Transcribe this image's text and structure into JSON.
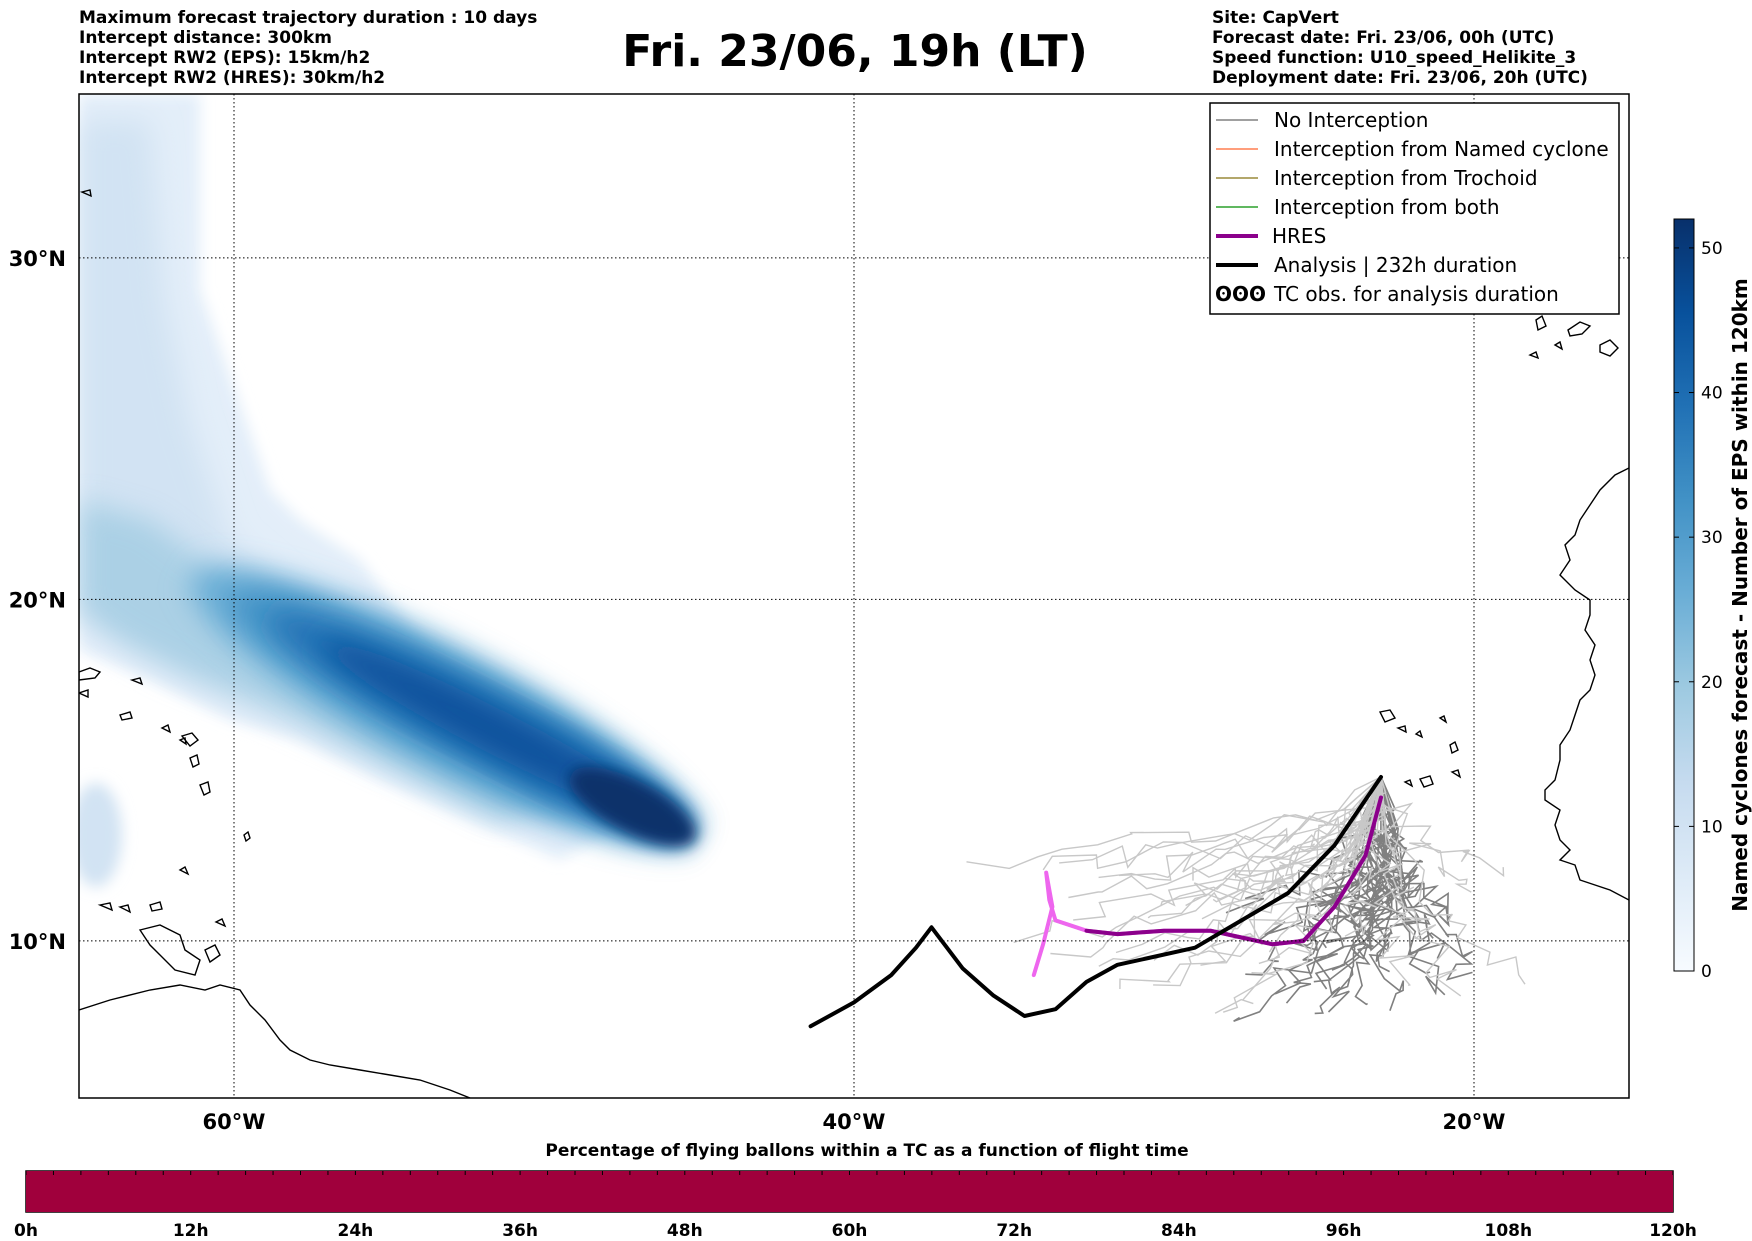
{
  "header": {
    "title": "Fri. 23/06, 19h (LT)",
    "left_info": [
      "Maximum forecast trajectory duration : 10 days",
      "Intercept distance: 300km",
      "Intercept RW2 (EPS):  15km/h2",
      "Intercept RW2 (HRES): 30km/h2"
    ],
    "right_info": [
      "Site: CapVert",
      "Forecast date: Fri. 23/06, 00h (UTC)",
      "Speed function: U10_speed_Helikite_3",
      "Deployment date: Fri. 23/06, 20h (UTC)"
    ]
  },
  "map": {
    "lon_range": [
      -65,
      -15
    ],
    "lat_range": [
      5.4,
      34.8
    ],
    "lon_ticks": [
      {
        "value": -60,
        "label": "60°W"
      },
      {
        "value": -40,
        "label": "40°W"
      },
      {
        "value": -20,
        "label": "20°W"
      }
    ],
    "lat_ticks": [
      {
        "value": 30,
        "label": "30°N"
      },
      {
        "value": 20,
        "label": "20°N"
      },
      {
        "value": 10,
        "label": "10°N"
      }
    ],
    "grid": "dotted",
    "colors": {
      "no_interception": "#808080",
      "named_cyclone": "#ff7f50",
      "trochoid": "#9a8a3a",
      "both": "#2ca02c",
      "hres": "#8b008b",
      "hres_light": "#ee66ee",
      "analysis": "#000000"
    }
  },
  "legend": {
    "placement": "top-right",
    "items": [
      {
        "label": "No Interception",
        "color": "#808080",
        "style": "thin-line"
      },
      {
        "label": "Interception from Named cyclone",
        "color": "#ff7f50",
        "style": "thin-line"
      },
      {
        "label": "Interception from Trochoid",
        "color": "#9a8a3a",
        "style": "thin-line"
      },
      {
        "label": "Interception from both",
        "color": "#2ca02c",
        "style": "thin-line"
      },
      {
        "label": "HRES",
        "color": "#8b008b",
        "style": "thick-line"
      },
      {
        "label": "Analysis | 232h duration",
        "color": "#000000",
        "style": "thick-line"
      },
      {
        "label": "TC obs. for analysis duration",
        "color": "#000000",
        "style": "cyclone-symbols"
      }
    ]
  },
  "colorbar": {
    "title": "Named cyclones forecast - Number of EPS within 120km",
    "range": [
      0,
      52
    ],
    "ticks": [
      0,
      10,
      20,
      30,
      40,
      50
    ],
    "colormap": "Blues"
  },
  "bottom_bar": {
    "title": "Percentage of flying ballons within a TC as a function of flight time",
    "color": "#a0003c",
    "ticks": [
      "0h",
      "12h",
      "24h",
      "36h",
      "48h",
      "60h",
      "72h",
      "84h",
      "96h",
      "108h",
      "120h"
    ]
  },
  "chart_data": {
    "type": "map",
    "title": "Fri. 23/06, 19h (LT)",
    "xlabel": "",
    "ylabel": "",
    "xlim": [
      -65,
      -15
    ],
    "ylim": [
      5.4,
      34.8
    ],
    "cyclone_density": {
      "axis_start": [
        -60,
        20
      ],
      "axis_end": [
        -46.5,
        13.7
      ],
      "peak_value": 52,
      "peak_location": [
        -46.5,
        13.7
      ],
      "upstream_plume_to": [
        -65,
        34.8
      ]
    },
    "analysis_track": {
      "name": "Analysis | 232h duration",
      "duration_h": 232,
      "points": [
        [
          -23.0,
          14.8
        ],
        [
          -24.5,
          12.8
        ],
        [
          -26.0,
          11.4
        ],
        [
          -27.5,
          10.6
        ],
        [
          -29.0,
          9.8
        ],
        [
          -30.5,
          9.5
        ],
        [
          -31.5,
          9.3
        ],
        [
          -32.5,
          8.8
        ],
        [
          -33.5,
          8.0
        ],
        [
          -34.5,
          7.8
        ],
        [
          -35.5,
          8.4
        ],
        [
          -36.5,
          9.2
        ],
        [
          -37.5,
          10.4
        ],
        [
          -38.0,
          9.8
        ],
        [
          -38.8,
          9.0
        ],
        [
          -40.0,
          8.2
        ],
        [
          -41.4,
          7.5
        ]
      ]
    },
    "hres_track": {
      "name": "HRES",
      "points": [
        [
          -23.0,
          14.2
        ],
        [
          -23.5,
          12.5
        ],
        [
          -24.5,
          11.0
        ],
        [
          -25.5,
          10.0
        ],
        [
          -26.5,
          9.9
        ],
        [
          -27.5,
          10.1
        ],
        [
          -28.5,
          10.3
        ],
        [
          -30.0,
          10.3
        ],
        [
          -31.5,
          10.2
        ],
        [
          -32.5,
          10.3
        ],
        [
          -33.5,
          10.6
        ],
        [
          -33.7,
          11.2
        ],
        [
          -33.8,
          12.0
        ],
        [
          -33.6,
          11.0
        ],
        [
          -33.9,
          9.9
        ],
        [
          -34.2,
          9.0
        ]
      ]
    },
    "bottom_bar_values": {
      "x_hours": [
        0,
        120
      ],
      "percentage": [
        100,
        100
      ]
    }
  }
}
